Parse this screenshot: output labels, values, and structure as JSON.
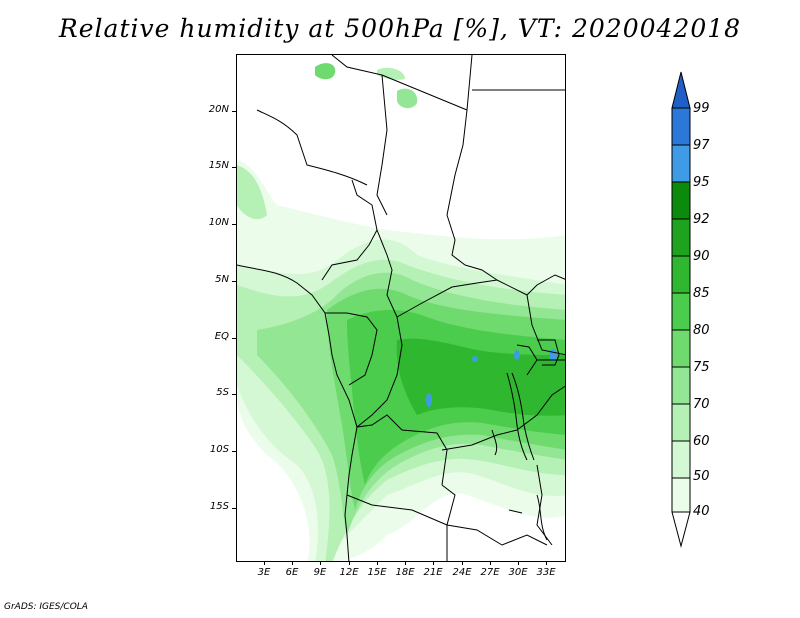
{
  "title": "Relative humidity at 500hPa [%], VT: 2020042018",
  "credit": "GrADS: IGES/COLA",
  "lat_labels": [
    "20N",
    "15N",
    "10N",
    "5N",
    "EQ",
    "5S",
    "10S",
    "15S"
  ],
  "lon_labels": [
    "3E",
    "6E",
    "9E",
    "12E",
    "15E",
    "18E",
    "21E",
    "24E",
    "27E",
    "30E",
    "33E"
  ],
  "colorbar": {
    "labels": [
      "99",
      "97",
      "95",
      "92",
      "90",
      "85",
      "80",
      "75",
      "70",
      "60",
      "50",
      "40"
    ],
    "colors": {
      "above_99": "#1f5fc7",
      "97_99": "#2b78d9",
      "95_97": "#3f9be6",
      "92_95": "#0c8a0c",
      "90_92": "#1fa31f",
      "85_90": "#2fb82f",
      "80_85": "#4ccc4c",
      "75_80": "#6fdb6f",
      "70_75": "#93e693",
      "60_70": "#b5f0b5",
      "50_60": "#d4f7d4",
      "40_50": "#ebfceb",
      "below_40": "#ffffff"
    }
  },
  "field_colors": {
    "c40": "#ebfceb",
    "c50": "#d4f7d4",
    "c60": "#b5f0b5",
    "c70": "#93e693",
    "c75": "#6fdb6f",
    "c80": "#4ccc4c",
    "c85": "#2fb82f",
    "lake": "#3f9be6"
  }
}
